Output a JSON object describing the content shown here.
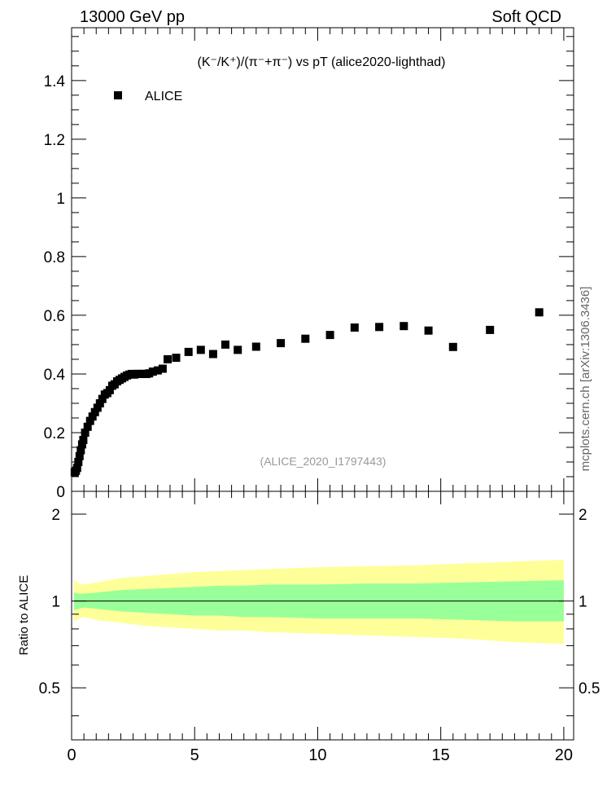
{
  "header": {
    "left": "13000 GeV pp",
    "right": "Soft QCD"
  },
  "side_label": "mcplots.cern.ch [arXiv:1306.3436]",
  "chart_data": [
    {
      "type": "scatter",
      "title": "(K⁻/K⁺)/(π⁻+π⁻) vs pT (alice2020-lighthad)",
      "watermark": "(ALICE_2020_I1797443)",
      "legend": {
        "entries": [
          "ALICE"
        ],
        "placement": "top-left"
      },
      "xlim": [
        0,
        20.4
      ],
      "ylim": [
        0,
        1.58
      ],
      "y_ticks": [
        0.2,
        0.4,
        0.6,
        0.8,
        1,
        1.2,
        1.4
      ],
      "y_tick_labels": [
        "0.2",
        "0.4",
        "0.6",
        "0.8",
        "1",
        "1.2",
        "1.4"
      ],
      "bottom_tick_label": "0",
      "series": [
        {
          "name": "ALICE",
          "x": [
            0.125,
            0.175,
            0.225,
            0.275,
            0.325,
            0.375,
            0.425,
            0.475,
            0.55,
            0.65,
            0.75,
            0.85,
            0.95,
            1.05,
            1.15,
            1.25,
            1.35,
            1.45,
            1.55,
            1.65,
            1.75,
            1.85,
            1.95,
            2.05,
            2.15,
            2.25,
            2.35,
            2.45,
            2.55,
            2.65,
            2.75,
            2.85,
            2.95,
            3.05,
            3.15,
            3.3,
            3.5,
            3.7,
            3.9,
            4.25,
            4.75,
            5.25,
            5.75,
            6.25,
            6.75,
            7.5,
            8.5,
            9.5,
            10.5,
            11.5,
            12.5,
            13.5,
            14.5,
            15.5,
            17.0,
            19.0
          ],
          "values": [
            0.065,
            0.07,
            0.08,
            0.1,
            0.12,
            0.14,
            0.16,
            0.175,
            0.2,
            0.22,
            0.24,
            0.255,
            0.27,
            0.285,
            0.3,
            0.315,
            0.33,
            0.335,
            0.345,
            0.36,
            0.365,
            0.375,
            0.38,
            0.385,
            0.39,
            0.395,
            0.398,
            0.4,
            0.398,
            0.4,
            0.4,
            0.4,
            0.4,
            0.4,
            0.402,
            0.408,
            0.412,
            0.418,
            0.45,
            0.455,
            0.475,
            0.482,
            0.468,
            0.5,
            0.482,
            0.493,
            0.505,
            0.52,
            0.533,
            0.558,
            0.56,
            0.563,
            0.548,
            0.492,
            0.55,
            0.61
          ]
        }
      ]
    },
    {
      "type": "area",
      "ylabel": "Ratio to ALICE",
      "xlim": [
        0,
        20.4
      ],
      "ylim": [
        0.33,
        2.4
      ],
      "log_y": true,
      "x_ticks": [
        0,
        5,
        10,
        15,
        20
      ],
      "x_tick_labels": [
        "0",
        "5",
        "10",
        "15",
        "20"
      ],
      "y_ticks": [
        0.5,
        1,
        2
      ],
      "y_tick_labels": [
        "0.5",
        "1",
        "2"
      ],
      "reference_line": 1,
      "bands": [
        {
          "color": "#ffff99",
          "x": [
            0.1,
            0.3,
            0.5,
            1,
            2,
            3,
            4,
            5,
            6,
            7,
            8,
            10,
            12,
            14,
            16,
            18,
            20
          ],
          "low": [
            0.85,
            0.87,
            0.88,
            0.86,
            0.84,
            0.82,
            0.81,
            0.8,
            0.79,
            0.79,
            0.78,
            0.77,
            0.76,
            0.75,
            0.74,
            0.72,
            0.71
          ],
          "high": [
            1.18,
            1.15,
            1.14,
            1.16,
            1.2,
            1.22,
            1.24,
            1.26,
            1.27,
            1.28,
            1.29,
            1.31,
            1.32,
            1.33,
            1.35,
            1.37,
            1.39
          ]
        },
        {
          "color": "#99ff99",
          "x": [
            0.1,
            0.3,
            0.5,
            1,
            2,
            3,
            4,
            5,
            6,
            7,
            8,
            10,
            12,
            14,
            16,
            18,
            20
          ],
          "low": [
            0.93,
            0.94,
            0.95,
            0.94,
            0.92,
            0.91,
            0.9,
            0.89,
            0.89,
            0.88,
            0.88,
            0.87,
            0.87,
            0.87,
            0.86,
            0.85,
            0.85
          ],
          "high": [
            1.07,
            1.06,
            1.06,
            1.07,
            1.09,
            1.1,
            1.11,
            1.12,
            1.13,
            1.13,
            1.14,
            1.14,
            1.15,
            1.15,
            1.16,
            1.17,
            1.18
          ]
        }
      ]
    }
  ]
}
